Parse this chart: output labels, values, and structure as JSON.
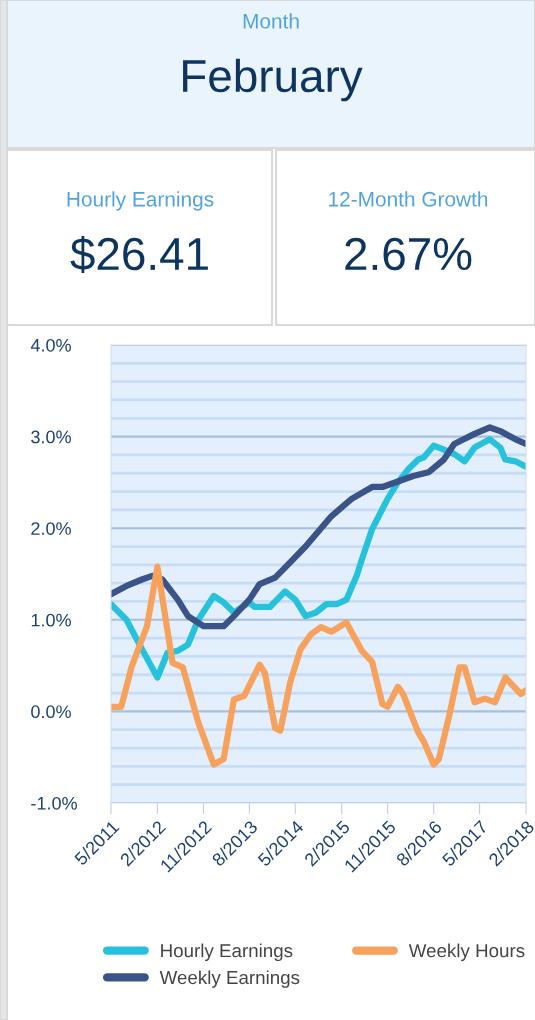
{
  "chart_data": [
    {
      "type": "other",
      "annotations": [
        "Month",
        "February",
        "Hourly Earnings",
        "$26.41",
        "12-Month Growth",
        "2.67%"
      ]
    },
    {
      "type": "line",
      "legend": "bottom",
      "grid": "y",
      "marker": "none",
      "line_style": "solid",
      "xlim": [
        "2011-05",
        "2018-02"
      ],
      "xticks": [
        {
          "value": "2011-05",
          "label": "5/2011"
        },
        {
          "value": "2012-02",
          "label": "2/2012"
        },
        {
          "value": "2012-11",
          "label": "11/2012"
        },
        {
          "value": "2013-08",
          "label": "8/2013"
        },
        {
          "value": "2014-05",
          "label": "5/2014"
        },
        {
          "value": "2015-02",
          "label": "2/2015"
        },
        {
          "value": "2015-11",
          "label": "11/2015"
        },
        {
          "value": "2016-08",
          "label": "8/2016"
        },
        {
          "value": "2017-05",
          "label": "5/2017"
        },
        {
          "value": "2018-02",
          "label": "2/2018"
        }
      ],
      "ylim": [
        -1,
        4
      ],
      "yticks": [
        {
          "value": -1,
          "label": "-1.0%"
        },
        {
          "value": -0.8,
          "label": null
        },
        {
          "value": -0.6,
          "label": null
        },
        {
          "value": -0.4,
          "label": null
        },
        {
          "value": -0.2,
          "label": null
        },
        {
          "value": 0,
          "label": "0.0%"
        },
        {
          "value": 0.2,
          "label": null
        },
        {
          "value": 0.4,
          "label": null
        },
        {
          "value": 0.6,
          "label": null
        },
        {
          "value": 0.8,
          "label": null
        },
        {
          "value": 1,
          "label": "1.0%"
        },
        {
          "value": 1.2,
          "label": null
        },
        {
          "value": 1.4,
          "label": null
        },
        {
          "value": 1.6,
          "label": null
        },
        {
          "value": 1.8,
          "label": null
        },
        {
          "value": 2,
          "label": "2.0%"
        },
        {
          "value": 2.2,
          "label": null
        },
        {
          "value": 2.4,
          "label": null
        },
        {
          "value": 2.6,
          "label": null
        },
        {
          "value": 2.8,
          "label": null
        },
        {
          "value": 3,
          "label": "3.0%"
        },
        {
          "value": 3.2,
          "label": null
        },
        {
          "value": 3.4,
          "label": null
        },
        {
          "value": 3.6,
          "label": null
        },
        {
          "value": 3.8,
          "label": null
        },
        {
          "value": 4,
          "label": "4.0%"
        }
      ],
      "series": [
        {
          "name": "Hourly Earnings",
          "color": "#26c2dc",
          "x": [
            "2011-05",
            "2011-08",
            "2011-11",
            "2012-02",
            "2012-04",
            "2012-06",
            "2012-08",
            "2012-10",
            "2013-01",
            "2013-03",
            "2013-05",
            "2013-08",
            "2013-09",
            "2013-12",
            "2014-03",
            "2014-05",
            "2014-07",
            "2014-09",
            "2014-11",
            "2015-01",
            "2015-03",
            "2015-05",
            "2015-06",
            "2015-08",
            "2015-10",
            "2015-11",
            "2016-01",
            "2016-03",
            "2016-05",
            "2016-06",
            "2016-08",
            "2016-09",
            "2016-12",
            "2017-02",
            "2017-04",
            "2017-07",
            "2017-09",
            "2017-10",
            "2017-12",
            "2018-02"
          ],
          "values": [
            1.17,
            1.0,
            0.68,
            0.37,
            0.64,
            0.66,
            0.73,
            1.0,
            1.26,
            1.19,
            1.08,
            1.19,
            1.14,
            1.14,
            1.31,
            1.22,
            1.04,
            1.08,
            1.17,
            1.17,
            1.22,
            1.48,
            1.66,
            1.99,
            2.21,
            2.32,
            2.5,
            2.64,
            2.75,
            2.77,
            2.9,
            2.88,
            2.81,
            2.73,
            2.88,
            2.97,
            2.88,
            2.75,
            2.73,
            2.67
          ]
        },
        {
          "name": "Weekly Earnings",
          "color": "#3b5487",
          "x": [
            "2011-05",
            "2011-08",
            "2011-11",
            "2012-01",
            "2012-03",
            "2012-06",
            "2012-08",
            "2012-11",
            "2013-03",
            "2013-05",
            "2013-08",
            "2013-10",
            "2014-01",
            "2014-03",
            "2014-07",
            "2014-12",
            "2015-04",
            "2015-08",
            "2015-10",
            "2016-01",
            "2016-04",
            "2016-07",
            "2016-10",
            "2016-12",
            "2017-04",
            "2017-07",
            "2017-09",
            "2017-12",
            "2018-02"
          ],
          "values": [
            1.28,
            1.37,
            1.44,
            1.48,
            1.44,
            1.22,
            1.04,
            0.93,
            0.93,
            1.04,
            1.22,
            1.39,
            1.46,
            1.57,
            1.8,
            2.13,
            2.32,
            2.45,
            2.45,
            2.51,
            2.57,
            2.61,
            2.75,
            2.92,
            3.03,
            3.1,
            3.06,
            2.97,
            2.92
          ]
        },
        {
          "name": "Weekly Hours",
          "color": "#f7a25c",
          "x": [
            "2011-05",
            "2011-07",
            "2011-09",
            "2011-12",
            "2012-02",
            "2012-05",
            "2012-07",
            "2012-10",
            "2013-01",
            "2013-03",
            "2013-05",
            "2013-07",
            "2013-10",
            "2013-11",
            "2014-01",
            "2014-02",
            "2014-04",
            "2014-06",
            "2014-08",
            "2014-10",
            "2014-12",
            "2015-03",
            "2015-06",
            "2015-08",
            "2015-10",
            "2015-11",
            "2016-01",
            "2016-02",
            "2016-05",
            "2016-06",
            "2016-08",
            "2016-09",
            "2016-11",
            "2017-01",
            "2017-02",
            "2017-04",
            "2017-06",
            "2017-08",
            "2017-10",
            "2018-01",
            "2018-02"
          ],
          "values": [
            0.05,
            0.05,
            0.49,
            0.93,
            1.58,
            0.53,
            0.48,
            -0.12,
            -0.58,
            -0.52,
            0.13,
            0.17,
            0.51,
            0.42,
            -0.18,
            -0.21,
            0.32,
            0.68,
            0.84,
            0.92,
            0.87,
            0.97,
            0.66,
            0.54,
            0.08,
            0.05,
            0.27,
            0.19,
            -0.23,
            -0.32,
            -0.58,
            -0.52,
            -0.05,
            0.48,
            0.48,
            0.1,
            0.14,
            0.1,
            0.37,
            0.19,
            0.23
          ]
        }
      ]
    }
  ]
}
